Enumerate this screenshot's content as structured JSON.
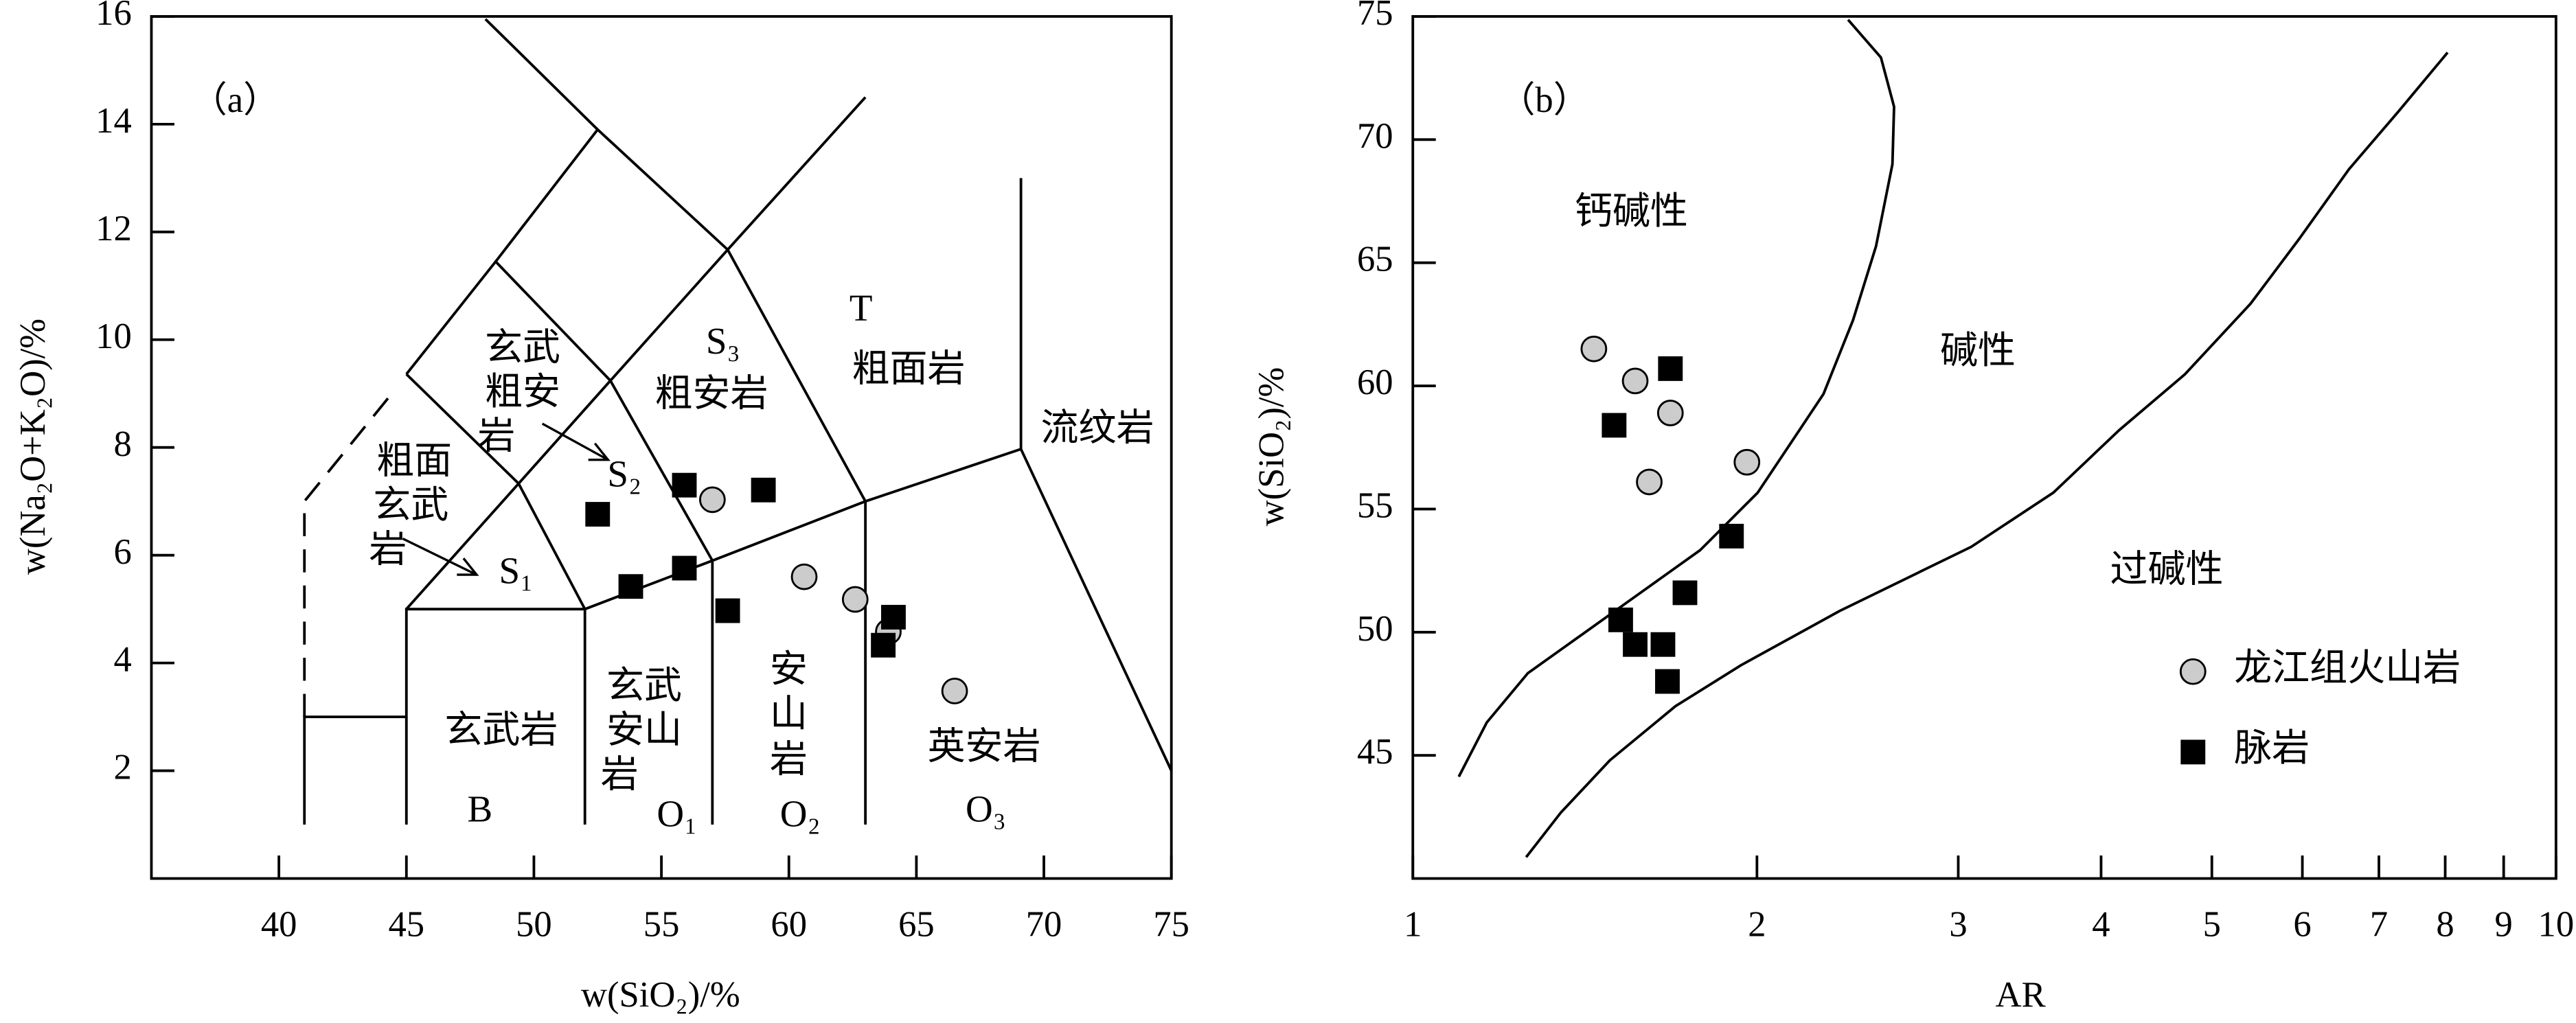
{
  "chart_data": [
    {
      "type": "scatter",
      "label": "（a）",
      "xlabel": "w(SiO₂)/%",
      "ylabel": "w(Na₂O+K₂O)/%",
      "xlim": [
        35,
        75
      ],
      "xticks": [
        40,
        45,
        50,
        55,
        60,
        65,
        70,
        75
      ],
      "ylim": [
        0,
        16
      ],
      "yticks": [
        2,
        4,
        6,
        8,
        10,
        12,
        14,
        16
      ],
      "series": [
        {
          "marker": "circle",
          "color": "#cccccc",
          "x": [
            57.0,
            60.6,
            62.6,
            63.9,
            66.5
          ],
          "values": [
            7.03,
            5.6,
            5.18,
            4.58,
            3.48
          ]
        },
        {
          "marker": "square",
          "color": "#000000",
          "x": [
            52.5,
            55.9,
            59.0,
            53.8,
            55.9,
            57.6,
            64.1,
            63.7
          ],
          "values": [
            6.76,
            7.3,
            7.21,
            5.42,
            5.76,
            4.97,
            4.85,
            4.33
          ]
        }
      ],
      "annotations": [
        "T",
        "粗面岩",
        "S₃",
        "粗安岩",
        "流纹岩",
        "玄武",
        "粗安",
        "岩",
        "粗面",
        "玄武",
        "岩",
        "S₂",
        "S₁",
        "玄武岩",
        "B",
        "玄武",
        "安山",
        "岩",
        "O₁",
        "安",
        "山",
        "岩",
        "O₂",
        "英安岩",
        "O₃"
      ]
    },
    {
      "type": "scatter",
      "label": "（b）",
      "xlabel": "AR",
      "ylabel": "w(SiO₂)/%",
      "xscale": "log",
      "xlim": [
        1,
        10
      ],
      "xticks": [
        1,
        2,
        3,
        4,
        5,
        6,
        7,
        8,
        9,
        10
      ],
      "ylim": [
        40,
        75
      ],
      "yticks": [
        45,
        50,
        55,
        60,
        65,
        70,
        75
      ],
      "legend": "lower right",
      "series": [
        {
          "name": "龙江组火山岩",
          "marker": "circle",
          "color": "#cccccc",
          "x": [
            1.44,
            1.565,
            1.68,
            1.61,
            1.96
          ],
          "values": [
            61.5,
            60.2,
            58.9,
            56.1,
            56.9
          ]
        },
        {
          "name": "脉岩",
          "marker": "square",
          "color": "#000000",
          "x": [
            1.68,
            1.5,
            1.9,
            1.73,
            1.52,
            1.565,
            1.655,
            1.67
          ],
          "values": [
            60.7,
            58.4,
            53.9,
            51.6,
            50.5,
            49.5,
            49.5,
            48.0
          ]
        }
      ],
      "annotations": [
        "钙碱性",
        "碱性",
        "过碱性"
      ]
    }
  ]
}
